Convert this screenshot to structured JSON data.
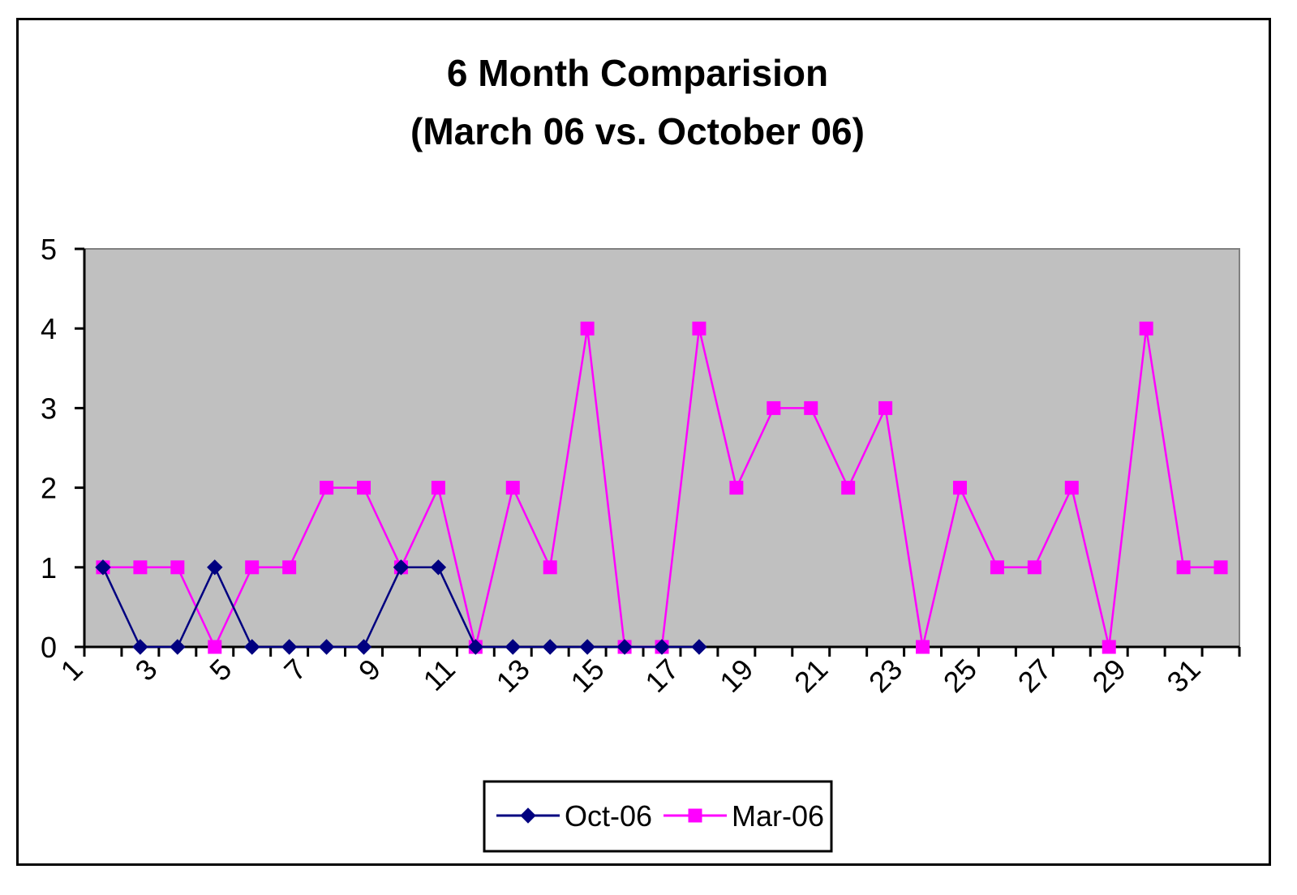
{
  "chart_data": {
    "type": "line",
    "title": "6 Month Comparision",
    "subtitle": "(March 06 vs. October 06)",
    "xlabel": "",
    "ylabel": "",
    "ylim": [
      0,
      5
    ],
    "y_ticks": [
      "0",
      "1",
      "2",
      "3",
      "4",
      "5"
    ],
    "x_ticks": [
      "1",
      "3",
      "5",
      "7",
      "9",
      "11",
      "13",
      "15",
      "17",
      "19",
      "21",
      "23",
      "25",
      "27",
      "29",
      "31"
    ],
    "x_count": 31,
    "grid": false,
    "plot_background": "#c0c0c0",
    "legend_position": "bottom",
    "series": [
      {
        "name": "Oct-06",
        "color": "#000080",
        "marker": "diamond",
        "values": [
          1,
          0,
          0,
          1,
          0,
          0,
          0,
          0,
          1,
          1,
          0,
          0,
          0,
          0,
          0,
          0,
          0
        ]
      },
      {
        "name": "Mar-06",
        "color": "#ff00ff",
        "marker": "square",
        "values": [
          1,
          1,
          1,
          0,
          1,
          1,
          2,
          2,
          1,
          2,
          0,
          2,
          1,
          4,
          0,
          0,
          4,
          2,
          3,
          3,
          2,
          3,
          0,
          2,
          1,
          1,
          2,
          0,
          4,
          1,
          1
        ]
      }
    ]
  }
}
